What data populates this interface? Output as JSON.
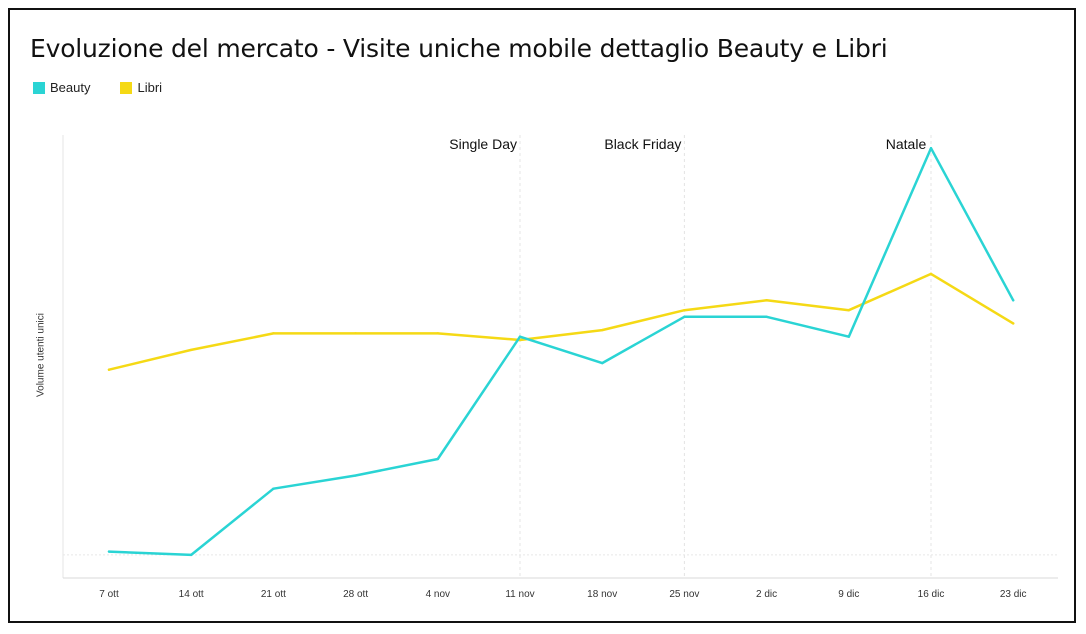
{
  "chart_data": {
    "type": "line",
    "title": "Evoluzione del mercato - Visite uniche mobile dettaglio Beauty e Libri",
    "xlabel": "",
    "ylabel": "Volume utenti unici",
    "categories": [
      "7 ott",
      "14 ott",
      "21 ott",
      "28 ott",
      "4 nov",
      "11 nov",
      "18 nov",
      "25 nov",
      "2 dic",
      "9 dic",
      "16 dic",
      "23 dic"
    ],
    "series": [
      {
        "name": "Beauty",
        "color": "#2ad4d4",
        "values": [
          1,
          0,
          20,
          24,
          29,
          66,
          58,
          72,
          72,
          66,
          123,
          77
        ]
      },
      {
        "name": "Libri",
        "color": "#f5d915",
        "values": [
          56,
          62,
          67,
          67,
          67,
          65,
          68,
          74,
          77,
          74,
          85,
          70
        ]
      }
    ],
    "ylim": [
      -7,
      127
    ],
    "grid": "baseline only",
    "legend_position": "top-left",
    "annotations": [
      {
        "label": "Single Day",
        "x_index": 5
      },
      {
        "label": "Black Friday",
        "x_index": 7
      },
      {
        "label": "Natale",
        "x_index": 10
      }
    ]
  }
}
